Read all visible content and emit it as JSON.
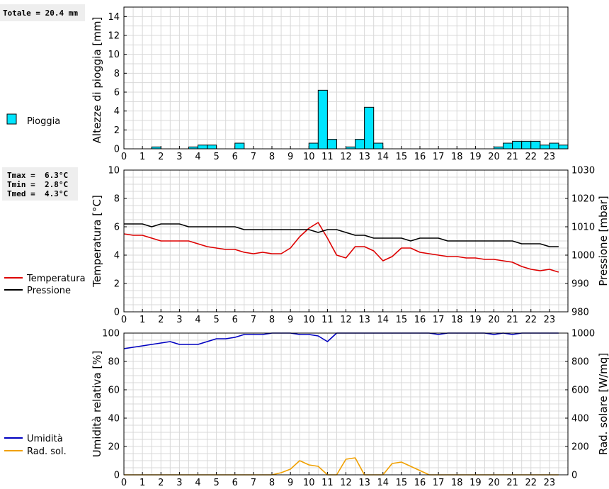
{
  "colors": {
    "rain": "#00e5ff",
    "temperature": "#dd0000",
    "pressure": "#000000",
    "humidity": "#0000c0",
    "solar": "#f0a000",
    "grid": "#d8d8d8",
    "stats_bg": "#eeeeee"
  },
  "chart_data": [
    {
      "type": "bar",
      "ylabel": "Altezze di pioggia [mm]",
      "ylim": [
        0,
        15
      ],
      "yticks": [
        0,
        2,
        4,
        6,
        8,
        10,
        12,
        14
      ],
      "xlim": [
        0,
        24
      ],
      "xticks": [
        "0",
        "1",
        "2",
        "3",
        "4",
        "5",
        "6",
        "7",
        "8",
        "9",
        "10",
        "11",
        "12",
        "13",
        "14",
        "15",
        "16",
        "17",
        "18",
        "19",
        "20",
        "21",
        "22",
        "23"
      ],
      "bar_width": 0.5,
      "total_label": "Totale = 20.4 mm",
      "legend": [
        "Pioggia"
      ],
      "x": [
        1.75,
        3.75,
        4.25,
        4.75,
        6.25,
        10.25,
        10.75,
        11.25,
        12.25,
        12.75,
        13.25,
        13.75,
        20.25,
        20.75,
        21.25,
        21.75,
        22.25,
        22.75,
        23.25,
        23.75
      ],
      "values": [
        0.2,
        0.2,
        0.4,
        0.4,
        0.6,
        0.6,
        6.2,
        1.0,
        0.2,
        1.0,
        4.4,
        0.6,
        0.2,
        0.6,
        0.8,
        0.8,
        0.8,
        0.4,
        0.6,
        0.4
      ]
    },
    {
      "type": "line",
      "ylabel": "Temperatura [°C]",
      "ylim": [
        0,
        10
      ],
      "yticks": [
        0,
        2,
        4,
        6,
        8,
        10
      ],
      "y2label": "Pressione [mbar]",
      "y2lim": [
        980,
        1030
      ],
      "y2ticks": [
        980,
        990,
        1000,
        1010,
        1020,
        1030
      ],
      "xlim": [
        0,
        24
      ],
      "xticks": [
        "0",
        "1",
        "2",
        "3",
        "4",
        "5",
        "6",
        "7",
        "8",
        "9",
        "10",
        "11",
        "12",
        "13",
        "14",
        "15",
        "16",
        "17",
        "18",
        "19",
        "20",
        "21",
        "22",
        "23"
      ],
      "stats": [
        "Tmax =  6.3°C",
        "Tmin =  2.8°C",
        "Tmed =  4.3°C"
      ],
      "legend": [
        "Temperatura",
        "Pressione"
      ],
      "series": [
        {
          "name": "Temperatura",
          "x": [
            0,
            0.5,
            1,
            1.5,
            2,
            2.5,
            3,
            3.5,
            4,
            4.5,
            5,
            5.5,
            6,
            6.5,
            7,
            7.5,
            8,
            8.5,
            9,
            9.5,
            10,
            10.5,
            11,
            11.5,
            12,
            12.5,
            13,
            13.5,
            14,
            14.5,
            15,
            15.5,
            16,
            16.5,
            17,
            17.5,
            18,
            18.5,
            19,
            19.5,
            20,
            20.5,
            21,
            21.5,
            22,
            22.5,
            23,
            23.5
          ],
          "values": [
            5.5,
            5.4,
            5.4,
            5.2,
            5.0,
            5.0,
            5.0,
            5.0,
            4.8,
            4.6,
            4.5,
            4.4,
            4.4,
            4.2,
            4.1,
            4.2,
            4.1,
            4.1,
            4.5,
            5.3,
            5.9,
            6.3,
            5.2,
            4.0,
            3.8,
            4.6,
            4.6,
            4.3,
            3.6,
            3.9,
            4.5,
            4.5,
            4.2,
            4.1,
            4.0,
            3.9,
            3.9,
            3.8,
            3.8,
            3.7,
            3.7,
            3.6,
            3.5,
            3.2,
            3.0,
            2.9,
            3.0,
            2.8
          ]
        },
        {
          "name": "Pressione",
          "axis": "right",
          "x": [
            0,
            0.5,
            1,
            1.5,
            2,
            2.5,
            3,
            3.5,
            4,
            4.5,
            5,
            5.5,
            6,
            6.5,
            7,
            7.5,
            8,
            8.5,
            9,
            9.5,
            10,
            10.5,
            11,
            11.5,
            12,
            12.5,
            13,
            13.5,
            14,
            14.5,
            15,
            15.5,
            16,
            16.5,
            17,
            17.5,
            18,
            18.5,
            19,
            19.5,
            20,
            20.5,
            21,
            21.5,
            22,
            22.5,
            23,
            23.5
          ],
          "values": [
            1011,
            1011,
            1011,
            1010,
            1011,
            1011,
            1011,
            1010,
            1010,
            1010,
            1010,
            1010,
            1010,
            1009,
            1009,
            1009,
            1009,
            1009,
            1009,
            1009,
            1009,
            1008,
            1009,
            1009,
            1008,
            1007,
            1007,
            1006,
            1006,
            1006,
            1006,
            1005,
            1006,
            1006,
            1006,
            1005,
            1005,
            1005,
            1005,
            1005,
            1005,
            1005,
            1005,
            1004,
            1004,
            1004,
            1003,
            1003
          ]
        }
      ]
    },
    {
      "type": "line",
      "ylabel": "Umidità relativa [%]",
      "ylim": [
        0,
        100
      ],
      "yticks": [
        0,
        20,
        40,
        60,
        80,
        100
      ],
      "y2label": "Rad. solare [W/mq]",
      "y2lim": [
        0,
        1000
      ],
      "y2ticks": [
        0,
        200,
        400,
        600,
        800,
        1000
      ],
      "xlim": [
        0,
        24
      ],
      "xticks": [
        "0",
        "1",
        "2",
        "3",
        "4",
        "5",
        "6",
        "7",
        "8",
        "9",
        "10",
        "11",
        "12",
        "13",
        "14",
        "15",
        "16",
        "17",
        "18",
        "19",
        "20",
        "21",
        "22",
        "23"
      ],
      "legend": [
        "Umidità",
        "Rad. sol."
      ],
      "series": [
        {
          "name": "Umidità",
          "x": [
            0,
            0.5,
            1,
            1.5,
            2,
            2.5,
            3,
            3.5,
            4,
            4.5,
            5,
            5.5,
            6,
            6.5,
            7,
            7.5,
            8,
            8.5,
            9,
            9.5,
            10,
            10.5,
            11,
            11.5,
            12,
            16.5,
            17,
            17.5,
            19.5,
            20,
            20.5,
            21,
            21.5,
            23.5
          ],
          "values": [
            89,
            90,
            91,
            92,
            93,
            94,
            92,
            92,
            92,
            94,
            96,
            96,
            97,
            99,
            99,
            99,
            100,
            100,
            100,
            99,
            99,
            98,
            94,
            100,
            100,
            100,
            99,
            100,
            100,
            99,
            100,
            99,
            100,
            100
          ]
        },
        {
          "name": "Rad. sol.",
          "axis": "right",
          "x": [
            0,
            8,
            8.5,
            9,
            9.5,
            10,
            10.5,
            11,
            11.5,
            12,
            12.5,
            13,
            14,
            14.5,
            15,
            15.5,
            16,
            16.5,
            23.5
          ],
          "values": [
            0,
            0,
            15,
            40,
            100,
            70,
            60,
            0,
            0,
            110,
            120,
            0,
            0,
            80,
            90,
            60,
            30,
            0,
            0
          ]
        }
      ]
    }
  ]
}
